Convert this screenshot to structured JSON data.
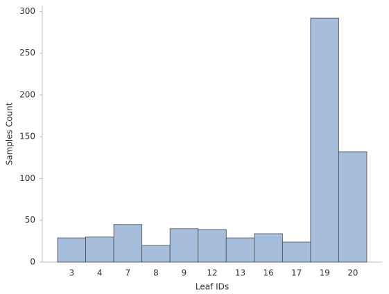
{
  "chart_data": {
    "type": "bar",
    "categories": [
      "3",
      "4",
      "7",
      "8",
      "9",
      "12",
      "13",
      "16",
      "17",
      "19",
      "20"
    ],
    "values": [
      29,
      30,
      45,
      20,
      40,
      39,
      29,
      34,
      24,
      292,
      132
    ],
    "color": "#a6bddb",
    "xlabel": "Leaf IDs",
    "ylabel": "Samples Count",
    "ylim": [
      0,
      307
    ],
    "yticks": [
      0,
      50,
      100,
      150,
      200,
      250,
      300
    ],
    "grid": false
  }
}
